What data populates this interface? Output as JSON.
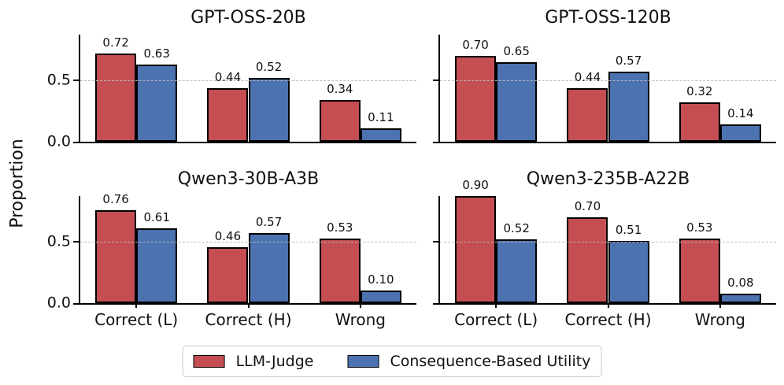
{
  "figure": {
    "ylabel": "Proportion",
    "background": "#ffffff"
  },
  "axis": {
    "ymax": 0.875,
    "yticks": [
      {
        "value": 0.0,
        "label": "0.0"
      },
      {
        "value": 0.5,
        "label": "0.5"
      }
    ],
    "gridline_at": 0.5
  },
  "colors": {
    "series": [
      "#C44E52",
      "#4C72B0"
    ],
    "bar_edge": "#000000",
    "gridline": "#BBBBBB"
  },
  "legend": {
    "items": [
      {
        "label": "LLM-Judge",
        "color": "#C44E52"
      },
      {
        "label": "Consequence-Based Utility",
        "color": "#4C72B0"
      }
    ]
  },
  "chart_data": {
    "type": "bar",
    "categories": [
      "Correct (L)",
      "Correct (H)",
      "Wrong"
    ],
    "ylabel": "Proportion",
    "ylim": [
      0,
      0.875
    ],
    "yticks": [
      0.0,
      0.5
    ],
    "grid": "dashed horizontal line at y=0.5, drawn over bars",
    "legend_position": "bottom center",
    "bar_value_labels": true,
    "subplots": [
      {
        "title": "GPT-OSS-20B",
        "series": [
          {
            "name": "LLM-Judge",
            "values": [
              0.72,
              0.44,
              0.34
            ]
          },
          {
            "name": "Consequence-Based Utility",
            "values": [
              0.63,
              0.52,
              0.11
            ]
          }
        ]
      },
      {
        "title": "GPT-OSS-120B",
        "series": [
          {
            "name": "LLM-Judge",
            "values": [
              0.7,
              0.44,
              0.32
            ]
          },
          {
            "name": "Consequence-Based Utility",
            "values": [
              0.65,
              0.57,
              0.14
            ]
          }
        ]
      },
      {
        "title": "Qwen3-30B-A3B",
        "series": [
          {
            "name": "LLM-Judge",
            "values": [
              0.76,
              0.46,
              0.53
            ]
          },
          {
            "name": "Consequence-Based Utility",
            "values": [
              0.61,
              0.57,
              0.1
            ]
          }
        ]
      },
      {
        "title": "Qwen3-235B-A22B",
        "series": [
          {
            "name": "LLM-Judge",
            "values": [
              0.9,
              0.7,
              0.53
            ]
          },
          {
            "name": "Consequence-Based Utility",
            "values": [
              0.52,
              0.51,
              0.08
            ]
          }
        ]
      }
    ]
  }
}
